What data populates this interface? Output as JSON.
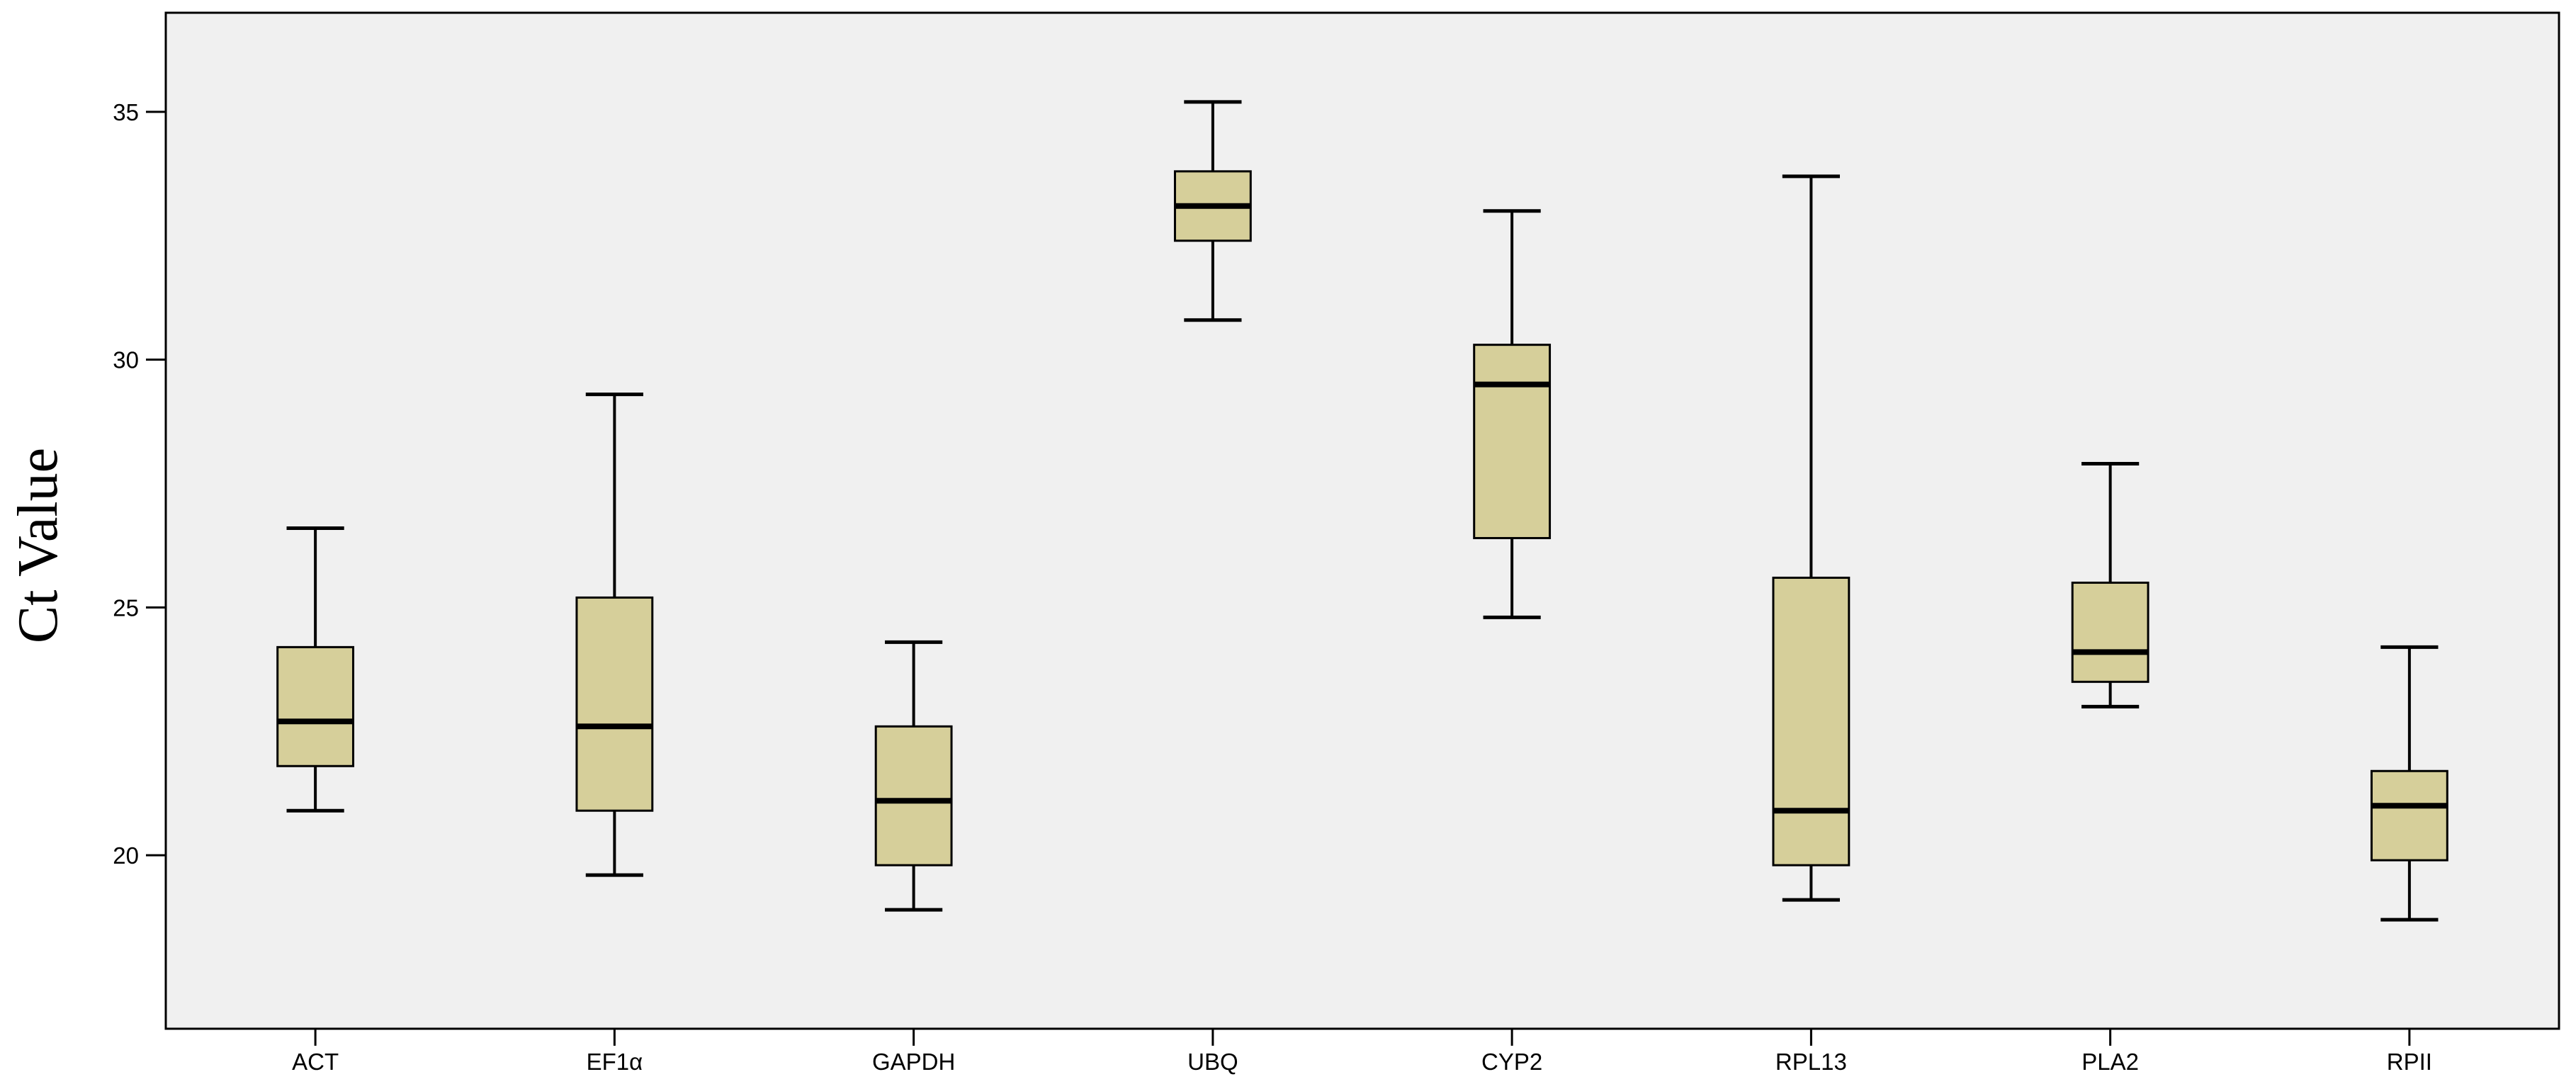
{
  "chart_data": {
    "type": "boxplot",
    "title": "",
    "xlabel": "",
    "ylabel": "Ct Value",
    "ylim": [
      16.5,
      37
    ],
    "yticks": [
      20,
      25,
      30,
      35
    ],
    "grid": false,
    "legend": "none",
    "colors": {
      "plot_background": "#f0f0f0",
      "box_fill": "#d6cf9a",
      "stroke": "#000000"
    },
    "categories": [
      "ACT",
      "EF1α",
      "GAPDH",
      "UBQ",
      "CYP2",
      "RPL13",
      "PLA2",
      "RPII"
    ],
    "boxes": [
      {
        "min": 20.9,
        "q1": 21.8,
        "median": 22.7,
        "q3": 24.2,
        "max": 26.6
      },
      {
        "min": 19.6,
        "q1": 20.9,
        "median": 22.6,
        "q3": 25.2,
        "max": 29.3
      },
      {
        "min": 18.9,
        "q1": 19.8,
        "median": 21.1,
        "q3": 22.6,
        "max": 24.3
      },
      {
        "min": 30.8,
        "q1": 32.4,
        "median": 33.1,
        "q3": 33.8,
        "max": 35.2
      },
      {
        "min": 24.8,
        "q1": 26.4,
        "median": 29.5,
        "q3": 30.3,
        "max": 33.0
      },
      {
        "min": 19.1,
        "q1": 19.8,
        "median": 20.9,
        "q3": 25.6,
        "max": 33.7
      },
      {
        "min": 23.0,
        "q1": 23.5,
        "median": 24.1,
        "q3": 25.5,
        "max": 27.9
      },
      {
        "min": 18.7,
        "q1": 19.9,
        "median": 21.0,
        "q3": 21.7,
        "max": 24.2
      }
    ]
  }
}
